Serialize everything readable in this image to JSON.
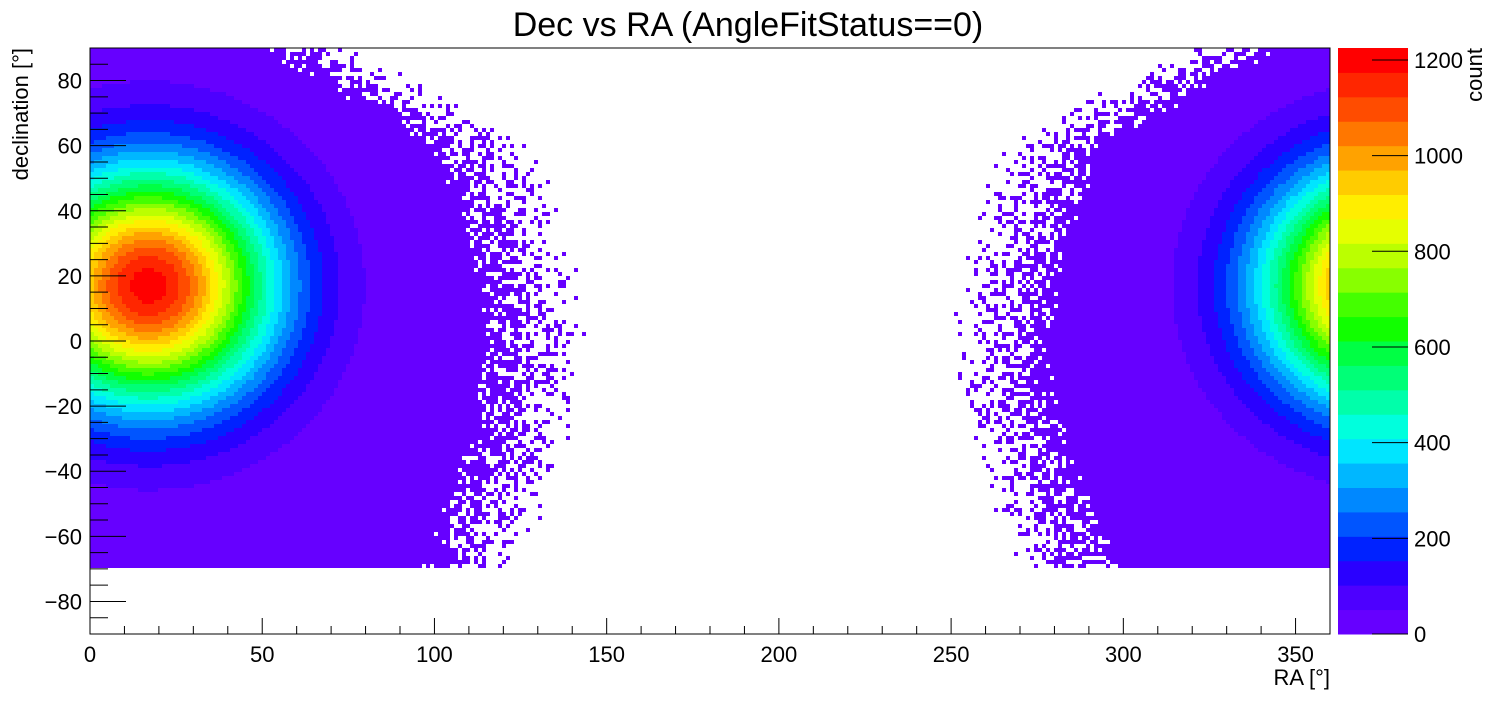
{
  "chart_data": {
    "type": "heatmap",
    "title": "Dec vs RA (AngleFitStatus==0)",
    "xlabel": "RA [°]",
    "ylabel": "declination [°]",
    "zlabel": "count",
    "xlim": [
      0,
      360
    ],
    "ylim": [
      -90,
      90
    ],
    "zlim": [
      0,
      1225
    ],
    "x_ticks": [
      0,
      50,
      100,
      150,
      200,
      250,
      300,
      350
    ],
    "y_ticks": [
      -80,
      -60,
      -40,
      -20,
      0,
      20,
      40,
      60,
      80
    ],
    "z_ticks": [
      0,
      200,
      400,
      600,
      800,
      1000,
      1200
    ],
    "x_tick_labels": [
      "0",
      "50",
      "100",
      "150",
      "200",
      "250",
      "300",
      "350"
    ],
    "y_tick_labels": [
      "−80",
      "−60",
      "−40",
      "−20",
      "0",
      "20",
      "40",
      "60",
      "80"
    ],
    "z_tick_labels": [
      "0",
      "200",
      "400",
      "600",
      "800",
      "1000",
      "1200"
    ],
    "grid": false,
    "legend": "colorbar-right",
    "hotspot": {
      "ra": 17,
      "dec": 17,
      "peak_count": 1200
    },
    "visible_extent": {
      "dec_min": -70,
      "dec_max": 90,
      "note_ra_wrap": "distribution wraps across RA 0/360"
    },
    "palette": [
      "#6600ff",
      "#4d00ff",
      "#2a00ff",
      "#0022ff",
      "#0055ff",
      "#0088ff",
      "#00b7ff",
      "#00e5ff",
      "#00ffdd",
      "#00ffaa",
      "#00ff77",
      "#00ff44",
      "#11ff00",
      "#44ff00",
      "#88ff00",
      "#bbff00",
      "#e5ff00",
      "#ffee00",
      "#ffcc00",
      "#ffa200",
      "#ff7700",
      "#ff4c00",
      "#ff2600",
      "#ff0000"
    ]
  }
}
